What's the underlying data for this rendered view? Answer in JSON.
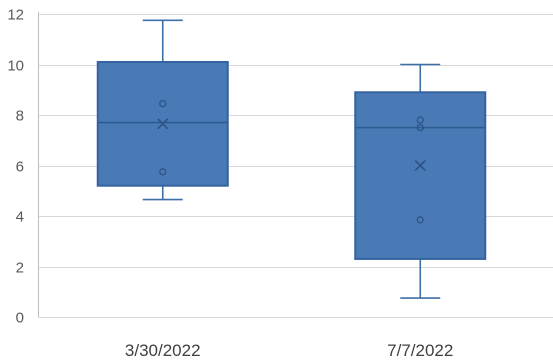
{
  "chart_data": {
    "type": "boxplot",
    "title": "",
    "xlabel": "",
    "ylabel": "",
    "ylim": [
      0,
      12
    ],
    "y_ticks": [
      "0",
      "2",
      "4",
      "6",
      "8",
      "10",
      "12"
    ],
    "grid": true,
    "legend": "none",
    "categories": [
      "3/30/2022",
      "7/7/2022"
    ],
    "boxes": [
      {
        "category": "3/30/2022",
        "min": 4.65,
        "q1": 5.2,
        "median": 7.7,
        "q3": 10.1,
        "max": 11.75,
        "mean": 7.65,
        "points": [
          8.45,
          5.75
        ]
      },
      {
        "category": "7/7/2022",
        "min": 0.75,
        "q1": 2.3,
        "median": 7.5,
        "q3": 8.9,
        "max": 10.0,
        "mean": 6.0,
        "points": [
          7.8,
          7.5,
          3.85
        ]
      }
    ],
    "colors": {
      "box_fill": "#4a7ab5",
      "box_stroke": "#3463a0",
      "whisker": "#3f6fa8",
      "grid": "#d9d9d9",
      "axis": "#bfbfbf"
    }
  }
}
